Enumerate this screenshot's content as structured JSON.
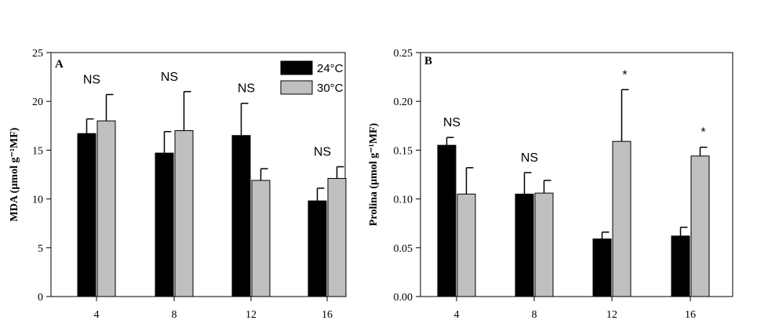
{
  "chart_data": [
    {
      "type": "bar",
      "panel_label": "A",
      "ylabel": "MDA (µmol g⁻¹MF)",
      "xlabel": "",
      "categories": [
        "4",
        "8",
        "12",
        "16"
      ],
      "ylim": [
        0,
        25
      ],
      "yticks": [
        "0",
        "5",
        "10",
        "15",
        "20",
        "25"
      ],
      "series": [
        {
          "name": "24°C",
          "color": "#000000",
          "values": [
            16.7,
            14.7,
            16.5,
            9.8
          ],
          "errors": [
            1.5,
            2.2,
            3.3,
            1.3
          ]
        },
        {
          "name": "30°C",
          "color": "#c0c0c0",
          "values": [
            18.0,
            17.0,
            11.9,
            12.1
          ],
          "errors": [
            2.7,
            4.0,
            1.2,
            1.2
          ]
        }
      ],
      "annotations": [
        "NS",
        "NS",
        "NS",
        "NS"
      ],
      "legend": "top-right",
      "grid": false
    },
    {
      "type": "bar",
      "panel_label": "B",
      "ylabel": "Prolina (µmol g⁻¹MF)",
      "xlabel": "",
      "categories": [
        "4",
        "8",
        "12",
        "16"
      ],
      "ylim": [
        0,
        0.25
      ],
      "yticks": [
        "0.00",
        "0.05",
        "0.10",
        "0.15",
        "0.20",
        "0.25"
      ],
      "series": [
        {
          "name": "24°C",
          "color": "#000000",
          "values": [
            0.155,
            0.105,
            0.059,
            0.062
          ],
          "errors": [
            0.008,
            0.022,
            0.007,
            0.009
          ]
        },
        {
          "name": "30°C",
          "color": "#c0c0c0",
          "values": [
            0.105,
            0.106,
            0.159,
            0.144
          ],
          "errors": [
            0.027,
            0.013,
            0.053,
            0.009
          ]
        }
      ],
      "annotations": [
        "NS",
        "NS",
        "*",
        "*"
      ],
      "legend": "none",
      "grid": false
    }
  ]
}
